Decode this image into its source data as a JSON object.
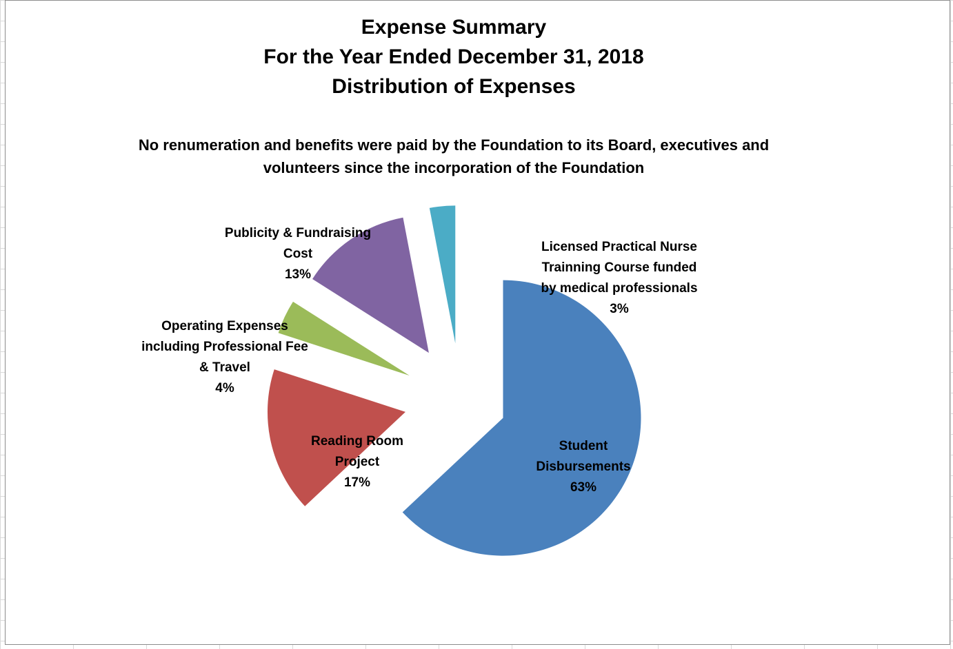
{
  "chart_data": {
    "type": "pie",
    "title_lines": [
      "Expense Summary",
      "For the Year Ended December 31, 2018",
      "Distribution of Expenses"
    ],
    "subtitle_lines": [
      "No renumeration and benefits were paid by the Foundation to its Board, executives and",
      "volunteers since the incorporation of the Foundation"
    ],
    "slices": [
      {
        "name": "Student Disbursements",
        "value": 63,
        "percent_label": "63%",
        "label_lines": [
          "Student",
          "Disbursements",
          "63%"
        ],
        "color": "#4A81BD"
      },
      {
        "name": "Reading Room Project",
        "value": 17,
        "percent_label": "17%",
        "label_lines": [
          "Reading Room",
          "Project",
          "17%"
        ],
        "color": "#C0504D"
      },
      {
        "name": "Operating Expenses including Professional Fee & Travel",
        "value": 4,
        "percent_label": "4%",
        "label_lines": [
          "Operating Expenses",
          "including Professional Fee",
          "& Travel",
          "4%"
        ],
        "color": "#9BBB59"
      },
      {
        "name": "Publicity & Fundraising Cost",
        "value": 13,
        "percent_label": "13%",
        "label_lines": [
          "Publicity & Fundraising",
          "Cost",
          "13%"
        ],
        "color": "#8064A2"
      },
      {
        "name": "Licensed Practical Nurse Trainning Course funded by medical professionals",
        "value": 3,
        "percent_label": "3%",
        "label_lines": [
          "Licensed Practical Nurse",
          "Trainning Course funded",
          "by medical professionals",
          "3%"
        ],
        "color": "#4BACC6"
      }
    ],
    "legend": "none",
    "exploded": true
  }
}
